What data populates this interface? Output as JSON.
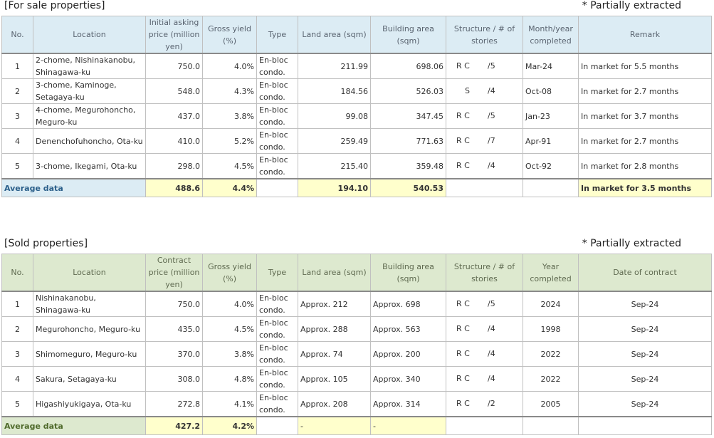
{
  "for_sale": {
    "title": "[For sale properties]",
    "note": "* Partially extracted",
    "headers": {
      "no": "No.",
      "location": "Location",
      "price": "Initial asking price (million yen)",
      "yield": "Gross yield (%)",
      "type": "Type",
      "land": "Land area (sqm)",
      "building": "Building area (sqm)",
      "structure": "Structure / # of stories",
      "completed": "Month/year completed",
      "remark": "Remark"
    },
    "rows": [
      {
        "no": "1",
        "location": "2-chome, Nishinakanobu, Shinagawa-ku",
        "price": "750.0",
        "yield": "4.0%",
        "type": "En-bloc condo.",
        "land": "211.99",
        "building": "698.06",
        "structure": "R C",
        "stories": "/5",
        "completed": "Mar-24",
        "remark": "In market for 5.5 months"
      },
      {
        "no": "2",
        "location": "3-chome, Kaminoge, Setagaya-ku",
        "price": "548.0",
        "yield": "4.3%",
        "type": "En-bloc condo.",
        "land": "184.56",
        "building": "526.03",
        "structure": "S",
        "stories": "/4",
        "completed": "Oct-08",
        "remark": "In market for 2.7 months"
      },
      {
        "no": "3",
        "location": "4-chome, Megurohoncho, Meguro-ku",
        "price": "437.0",
        "yield": "3.8%",
        "type": "En-bloc condo.",
        "land": "99.08",
        "building": "347.45",
        "structure": "R C",
        "stories": "/5",
        "completed": "Jan-23",
        "remark": "In market for 3.7 months"
      },
      {
        "no": "4",
        "location": "Denenchofuhoncho, Ota-ku",
        "price": "410.0",
        "yield": "5.2%",
        "type": "En-bloc condo.",
        "land": "259.49",
        "building": "771.63",
        "structure": "R C",
        "stories": "/7",
        "completed": "Apr-91",
        "remark": "In market for 2.7 months"
      },
      {
        "no": "5",
        "location": "3-chome, Ikegami, Ota-ku",
        "price": "298.0",
        "yield": "4.5%",
        "type": "En-bloc condo.",
        "land": "215.40",
        "building": "359.48",
        "structure": "R C",
        "stories": "/4",
        "completed": "Oct-92",
        "remark": "In market for 2.8 months"
      }
    ],
    "average": {
      "label": "Average data",
      "price": "488.6",
      "yield": "4.4%",
      "land": "194.10",
      "building": "540.53",
      "remark": "In market for 3.5 months"
    }
  },
  "sold": {
    "title": "[Sold properties]",
    "note": "* Partially extracted",
    "headers": {
      "no": "No.",
      "location": "Location",
      "price": "Contract price (million yen)",
      "yield": "Gross yield (%)",
      "type": "Type",
      "land": "Land area (sqm)",
      "building": "Building area (sqm)",
      "structure": "Structure / # of stories",
      "completed": "Year completed",
      "contract_date": "Date of contract"
    },
    "rows": [
      {
        "no": "1",
        "location": "Nishinakanobu, Shinagawa-ku",
        "price": "750.0",
        "yield": "4.0%",
        "type": "En-bloc condo.",
        "land": "Approx. 212",
        "building": "Approx. 698",
        "structure": "R C",
        "stories": "/5",
        "completed": "2024",
        "contract_date": "Sep-24"
      },
      {
        "no": "2",
        "location": "Megurohoncho, Meguro-ku",
        "price": "435.0",
        "yield": "4.5%",
        "type": "En-bloc condo.",
        "land": "Approx. 288",
        "building": "Approx. 563",
        "structure": "R C",
        "stories": "/4",
        "completed": "1998",
        "contract_date": "Sep-24"
      },
      {
        "no": "3",
        "location": "Shimomeguro, Meguro-ku",
        "price": "370.0",
        "yield": "3.8%",
        "type": "En-bloc condo.",
        "land": "Approx. 74",
        "building": "Approx. 200",
        "structure": "R C",
        "stories": "/4",
        "completed": "2022",
        "contract_date": "Sep-24"
      },
      {
        "no": "4",
        "location": "Sakura, Setagaya-ku",
        "price": "308.0",
        "yield": "4.8%",
        "type": "En-bloc condo.",
        "land": "Approx. 105",
        "building": "Approx. 340",
        "structure": "R C",
        "stories": "/4",
        "completed": "2022",
        "contract_date": "Sep-24"
      },
      {
        "no": "5",
        "location": "Higashiyukigaya, Ota-ku",
        "price": "272.8",
        "yield": "4.1%",
        "type": "En-bloc condo.",
        "land": "Approx. 208",
        "building": "Approx. 314",
        "structure": "R C",
        "stories": "/2",
        "completed": "2005",
        "contract_date": "Sep-24"
      }
    ],
    "average": {
      "label": "Average data",
      "price": "427.2",
      "yield": "4.2%",
      "land": "-",
      "building": "-"
    }
  }
}
